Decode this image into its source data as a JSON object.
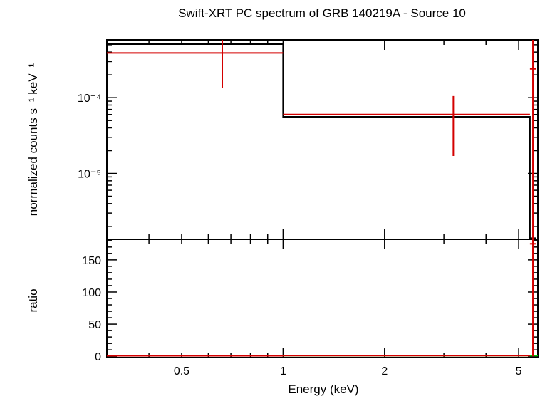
{
  "chart_data": [
    {
      "type": "line",
      "panel": "spectrum",
      "title": "Swift-XRT PC spectrum of GRB 140219A - Source 10",
      "xlabel": "",
      "ylabel": "normalized counts s⁻¹ keV⁻¹",
      "x_scale": "log",
      "y_scale": "log",
      "xlim": [
        0.3,
        5.7
      ],
      "ylim": [
        1.35e-06,
        0.00058
      ],
      "y_ticks": [
        {
          "value": 0.0001,
          "label": "10⁻⁴"
        },
        {
          "value": 1e-05,
          "label": "10⁻⁵"
        }
      ],
      "series": [
        {
          "kind": "model-steps",
          "color": "#000000",
          "steps": [
            {
              "x_lo": 0.3,
              "x_hi": 1.0,
              "y": 0.00051
            },
            {
              "x_lo": 1.0,
              "x_hi": 5.4,
              "y": 5.6e-05
            },
            {
              "x_lo": 5.4,
              "x_hi": 5.62,
              "y": 1.4e-06
            }
          ]
        },
        {
          "kind": "data-errorbars",
          "color": "#d40000",
          "points": [
            {
              "x_lo": 0.3,
              "x_hi": 1.0,
              "x": 0.66,
              "y": 0.00039,
              "y_lo": 0.000135,
              "y_hi": 0.00058
            },
            {
              "x_lo": 1.0,
              "x_hi": 5.4,
              "x": 3.2,
              "y": 6e-05,
              "y_lo": 1.7e-05,
              "y_hi": 0.000105
            },
            {
              "x_lo": 5.4,
              "x_hi": 5.62,
              "x": 5.51,
              "y": 0.00024,
              "y_lo": 1.35e-06,
              "y_hi": 0.00058
            }
          ]
        }
      ]
    },
    {
      "type": "line",
      "panel": "ratio",
      "xlabel": "Energy (keV)",
      "ylabel": "ratio",
      "x_scale": "log",
      "xlim": [
        0.3,
        5.7
      ],
      "ylim": [
        -2,
        182
      ],
      "x_ticks": [
        {
          "value": 0.5,
          "label": "0.5"
        },
        {
          "value": 1,
          "label": "1"
        },
        {
          "value": 2,
          "label": "2"
        },
        {
          "value": 5,
          "label": "5"
        }
      ],
      "y_ticks": [
        {
          "value": 0,
          "label": "0"
        },
        {
          "value": 50,
          "label": "50"
        },
        {
          "value": 100,
          "label": "100"
        },
        {
          "value": 150,
          "label": "150"
        }
      ],
      "series": [
        {
          "kind": "reference-line",
          "color": "#00cc00",
          "y": 1
        },
        {
          "kind": "data-errorbars",
          "color": "#d40000",
          "points": [
            {
              "x_lo": 0.3,
              "x_hi": 1.0,
              "x": 0.66,
              "y": 0.76
            },
            {
              "x_lo": 1.0,
              "x_hi": 5.4,
              "x": 3.2,
              "y": 1.07
            },
            {
              "x_lo": 5.4,
              "x_hi": 5.62,
              "x": 5.51,
              "y": 175,
              "y_lo": 0,
              "y_hi": 182
            }
          ]
        }
      ]
    }
  ]
}
